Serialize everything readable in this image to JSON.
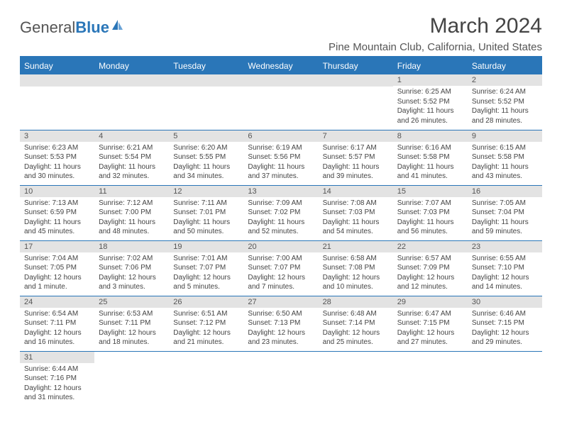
{
  "logo": {
    "text1": "General",
    "text2": "Blue"
  },
  "title": "March 2024",
  "location": "Pine Mountain Club, California, United States",
  "colors": {
    "header_bg": "#2a76b8",
    "header_text": "#ffffff",
    "daynum_bg": "#e3e3e3",
    "border": "#2a76b8",
    "text": "#444444"
  },
  "dow": [
    "Sunday",
    "Monday",
    "Tuesday",
    "Wednesday",
    "Thursday",
    "Friday",
    "Saturday"
  ],
  "weeks": [
    [
      null,
      null,
      null,
      null,
      null,
      {
        "n": "1",
        "sr": "6:25 AM",
        "ss": "5:52 PM",
        "dl": "11 hours and 26 minutes."
      },
      {
        "n": "2",
        "sr": "6:24 AM",
        "ss": "5:52 PM",
        "dl": "11 hours and 28 minutes."
      }
    ],
    [
      {
        "n": "3",
        "sr": "6:23 AM",
        "ss": "5:53 PM",
        "dl": "11 hours and 30 minutes."
      },
      {
        "n": "4",
        "sr": "6:21 AM",
        "ss": "5:54 PM",
        "dl": "11 hours and 32 minutes."
      },
      {
        "n": "5",
        "sr": "6:20 AM",
        "ss": "5:55 PM",
        "dl": "11 hours and 34 minutes."
      },
      {
        "n": "6",
        "sr": "6:19 AM",
        "ss": "5:56 PM",
        "dl": "11 hours and 37 minutes."
      },
      {
        "n": "7",
        "sr": "6:17 AM",
        "ss": "5:57 PM",
        "dl": "11 hours and 39 minutes."
      },
      {
        "n": "8",
        "sr": "6:16 AM",
        "ss": "5:58 PM",
        "dl": "11 hours and 41 minutes."
      },
      {
        "n": "9",
        "sr": "6:15 AM",
        "ss": "5:58 PM",
        "dl": "11 hours and 43 minutes."
      }
    ],
    [
      {
        "n": "10",
        "sr": "7:13 AM",
        "ss": "6:59 PM",
        "dl": "11 hours and 45 minutes."
      },
      {
        "n": "11",
        "sr": "7:12 AM",
        "ss": "7:00 PM",
        "dl": "11 hours and 48 minutes."
      },
      {
        "n": "12",
        "sr": "7:11 AM",
        "ss": "7:01 PM",
        "dl": "11 hours and 50 minutes."
      },
      {
        "n": "13",
        "sr": "7:09 AM",
        "ss": "7:02 PM",
        "dl": "11 hours and 52 minutes."
      },
      {
        "n": "14",
        "sr": "7:08 AM",
        "ss": "7:03 PM",
        "dl": "11 hours and 54 minutes."
      },
      {
        "n": "15",
        "sr": "7:07 AM",
        "ss": "7:03 PM",
        "dl": "11 hours and 56 minutes."
      },
      {
        "n": "16",
        "sr": "7:05 AM",
        "ss": "7:04 PM",
        "dl": "11 hours and 59 minutes."
      }
    ],
    [
      {
        "n": "17",
        "sr": "7:04 AM",
        "ss": "7:05 PM",
        "dl": "12 hours and 1 minute."
      },
      {
        "n": "18",
        "sr": "7:02 AM",
        "ss": "7:06 PM",
        "dl": "12 hours and 3 minutes."
      },
      {
        "n": "19",
        "sr": "7:01 AM",
        "ss": "7:07 PM",
        "dl": "12 hours and 5 minutes."
      },
      {
        "n": "20",
        "sr": "7:00 AM",
        "ss": "7:07 PM",
        "dl": "12 hours and 7 minutes."
      },
      {
        "n": "21",
        "sr": "6:58 AM",
        "ss": "7:08 PM",
        "dl": "12 hours and 10 minutes."
      },
      {
        "n": "22",
        "sr": "6:57 AM",
        "ss": "7:09 PM",
        "dl": "12 hours and 12 minutes."
      },
      {
        "n": "23",
        "sr": "6:55 AM",
        "ss": "7:10 PM",
        "dl": "12 hours and 14 minutes."
      }
    ],
    [
      {
        "n": "24",
        "sr": "6:54 AM",
        "ss": "7:11 PM",
        "dl": "12 hours and 16 minutes."
      },
      {
        "n": "25",
        "sr": "6:53 AM",
        "ss": "7:11 PM",
        "dl": "12 hours and 18 minutes."
      },
      {
        "n": "26",
        "sr": "6:51 AM",
        "ss": "7:12 PM",
        "dl": "12 hours and 21 minutes."
      },
      {
        "n": "27",
        "sr": "6:50 AM",
        "ss": "7:13 PM",
        "dl": "12 hours and 23 minutes."
      },
      {
        "n": "28",
        "sr": "6:48 AM",
        "ss": "7:14 PM",
        "dl": "12 hours and 25 minutes."
      },
      {
        "n": "29",
        "sr": "6:47 AM",
        "ss": "7:15 PM",
        "dl": "12 hours and 27 minutes."
      },
      {
        "n": "30",
        "sr": "6:46 AM",
        "ss": "7:15 PM",
        "dl": "12 hours and 29 minutes."
      }
    ],
    [
      {
        "n": "31",
        "sr": "6:44 AM",
        "ss": "7:16 PM",
        "dl": "12 hours and 31 minutes."
      },
      null,
      null,
      null,
      null,
      null,
      null
    ]
  ],
  "labels": {
    "sunrise": "Sunrise:",
    "sunset": "Sunset:",
    "daylight": "Daylight:"
  }
}
